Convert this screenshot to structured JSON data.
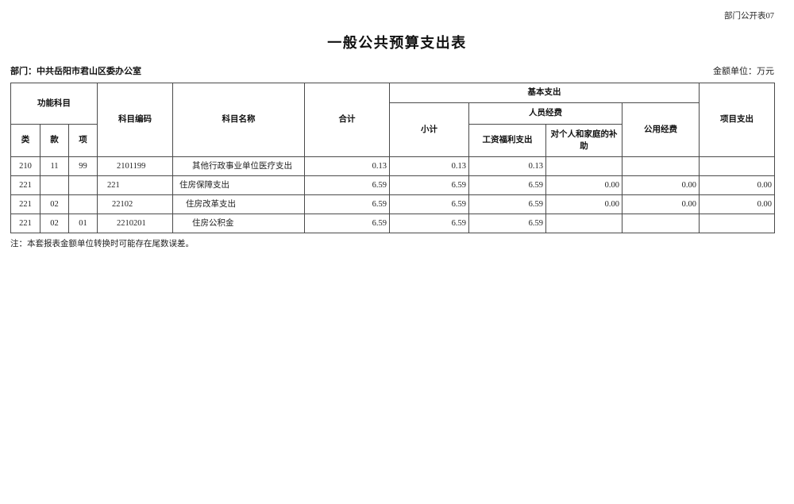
{
  "header": {
    "doc_label": "部门公开表07",
    "title": "一般公共预算支出表",
    "department": "部门：中共岳阳市君山区委办公室",
    "unit": "金额单位：万元"
  },
  "table": {
    "columns": {
      "func_subject": "功能科目",
      "cls": "类",
      "sec": "款",
      "item": "项",
      "code": "科目编码",
      "name": "科目名称",
      "total": "合计",
      "basic": "基本支出",
      "subtotal": "小计",
      "personnel": "人员经费",
      "wage": "工资福利支出",
      "family": "对个人和家庭的补助",
      "public": "公用经费",
      "project": "项目支出"
    },
    "rows": [
      {
        "cls": "210",
        "sec": "11",
        "item": "99",
        "code": "2101199",
        "name": "其他行政事业单位医疗支出",
        "total": "0.13",
        "subtotal": "0.13",
        "wage": "0.13",
        "family": "",
        "public": "",
        "project": ""
      },
      {
        "cls": "221",
        "sec": "",
        "item": "",
        "code": "221",
        "name": "住房保障支出",
        "total": "6.59",
        "subtotal": "6.59",
        "wage": "6.59",
        "family": "0.00",
        "public": "0.00",
        "project": "0.00"
      },
      {
        "cls": "221",
        "sec": "02",
        "item": "",
        "code": "22102",
        "name": "住房改革支出",
        "total": "6.59",
        "subtotal": "6.59",
        "wage": "6.59",
        "family": "0.00",
        "public": "0.00",
        "project": "0.00"
      },
      {
        "cls": "221",
        "sec": "02",
        "item": "01",
        "code": "2210201",
        "name": "住房公积金",
        "total": "6.59",
        "subtotal": "6.59",
        "wage": "6.59",
        "family": "",
        "public": "",
        "project": ""
      }
    ]
  },
  "footnote": "注：本套报表金额单位转换时可能存在尾数误差。"
}
